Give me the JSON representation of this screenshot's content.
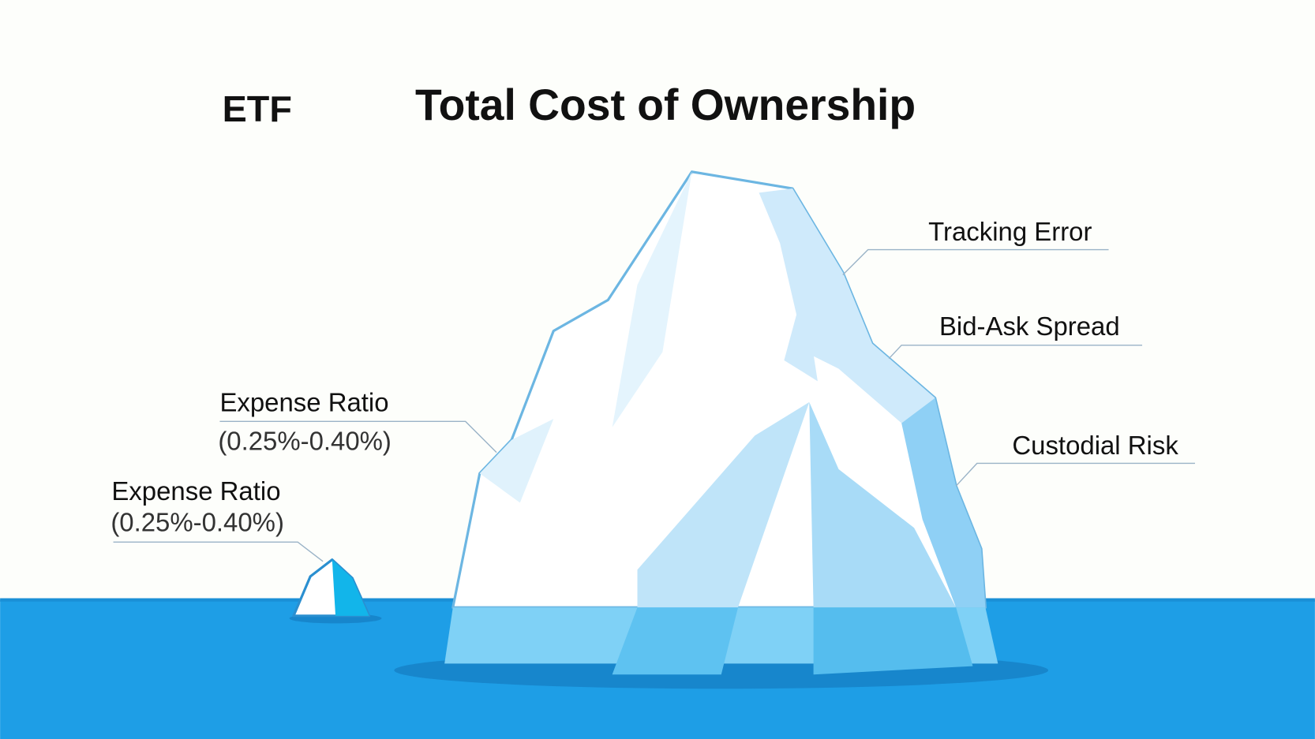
{
  "header": {
    "left": "ETF",
    "title": "Total Cost of Ownership"
  },
  "labels": [
    {
      "text": "Tracking Error"
    },
    {
      "text": "Bid-Ask Spread"
    },
    {
      "text": "Custodial Risk"
    },
    {
      "text": "Expense Ratio",
      "detail": "(0.25%-0.40%)"
    }
  ],
  "small_label": {
    "text": "Expense Ratio",
    "detail": "(0.25%-0.40%)"
  }
}
